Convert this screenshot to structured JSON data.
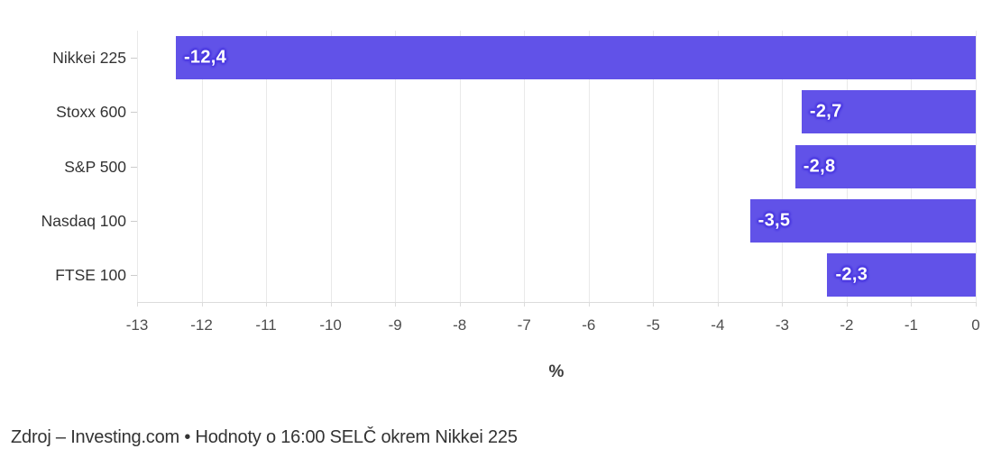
{
  "chart_data": {
    "type": "bar",
    "orientation": "horizontal",
    "categories": [
      "Nikkei 225",
      "Stoxx 600",
      "S&P 500",
      "Nasdaq 100",
      "FTSE 100"
    ],
    "values": [
      -12.4,
      -2.7,
      -2.8,
      -3.5,
      -2.3
    ],
    "value_labels": [
      "-12,4",
      "-2,7",
      "-2,8",
      "-3,5",
      "-2,3"
    ],
    "xlabel": "%",
    "xlim": [
      -13,
      0
    ],
    "xticks": [
      -13,
      -12,
      -11,
      -10,
      -9,
      -8,
      -7,
      -6,
      -5,
      -4,
      -3,
      -2,
      -1,
      0
    ],
    "grid": true,
    "legend": "none",
    "bar_color": "#6152e8",
    "bar_label_stroke_color": "#4b39e0",
    "bar_label_text_color": "#ffffff",
    "gridline_color": "#e9e9e9",
    "axis_line_color": "#dcdcdc",
    "footer": "Zdroj – Investing.com • Hodnoty o 16:00 SELČ okrem Nikkei 225"
  }
}
